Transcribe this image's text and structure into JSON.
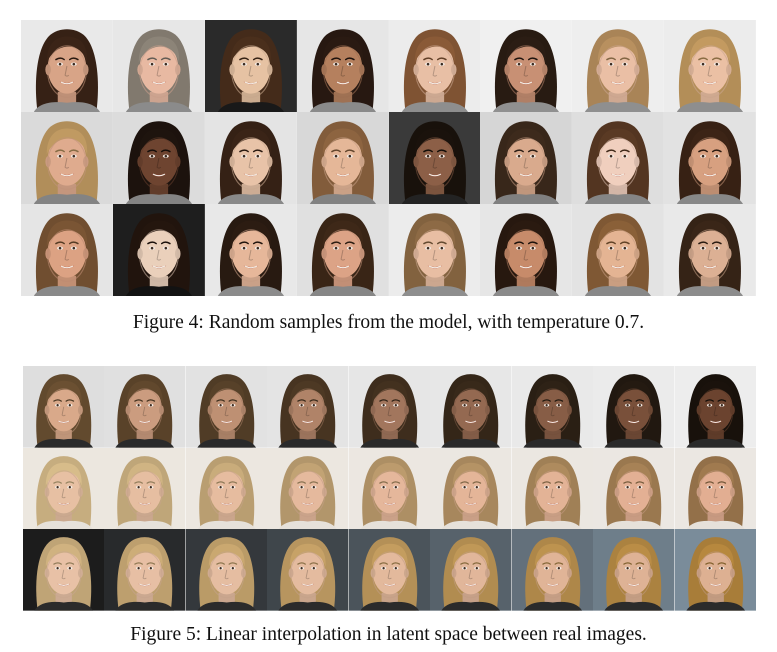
{
  "figure4": {
    "caption": "Figure 4: Random samples from the model, with temperature 0.7.",
    "rows": 3,
    "cols": 8,
    "samples": [
      {
        "bg": "#e9e9e9",
        "skin": "#d8a487",
        "hair": "#3b2417"
      },
      {
        "bg": "#e7e7e7",
        "skin": "#e8b9a2",
        "hair": "#8c8478"
      },
      {
        "bg": "#2a2a2a",
        "skin": "#e6c2a3",
        "hair": "#4a2f1c"
      },
      {
        "bg": "#e6e6e6",
        "skin": "#b5805e",
        "hair": "#2a1a12"
      },
      {
        "bg": "#ececec",
        "skin": "#e8bfa5",
        "hair": "#8a5a37"
      },
      {
        "bg": "#f0f0f0",
        "skin": "#c89074",
        "hair": "#2b1d14"
      },
      {
        "bg": "#eeeeee",
        "skin": "#eabfa5",
        "hair": "#b8905f"
      },
      {
        "bg": "#ececec",
        "skin": "#ebc0a4",
        "hair": "#c39a60"
      },
      {
        "bg": "#dadada",
        "skin": "#dfab8e",
        "hair": "#c09a62"
      },
      {
        "bg": "#dcdcdc",
        "skin": "#6e4430",
        "hair": "#1e140e"
      },
      {
        "bg": "#e4e4e4",
        "skin": "#e8c3a8",
        "hair": "#3a2417"
      },
      {
        "bg": "#d8d8d8",
        "skin": "#e5b798",
        "hair": "#8d6440"
      },
      {
        "bg": "#3a3a3a",
        "skin": "#8c5f47",
        "hair": "#1a120c"
      },
      {
        "bg": "#d6d6d6",
        "skin": "#d9aa8d",
        "hair": "#3d2a1c"
      },
      {
        "bg": "#dedede",
        "skin": "#f0cfbe",
        "hair": "#5a3a24"
      },
      {
        "bg": "#e2e2e2",
        "skin": "#d7a080",
        "hair": "#3c2416"
      },
      {
        "bg": "#e5e5e5",
        "skin": "#dca283",
        "hair": "#7a5534"
      },
      {
        "bg": "#1e1e1e",
        "skin": "#ead0bb",
        "hair": "#24160e"
      },
      {
        "bg": "#e8e8e8",
        "skin": "#e6b79a",
        "hair": "#2c1c12"
      },
      {
        "bg": "#e0e0e0",
        "skin": "#dca386",
        "hair": "#3e2818"
      },
      {
        "bg": "#ececec",
        "skin": "#e8bea3",
        "hair": "#8d6a45"
      },
      {
        "bg": "#e6e6e6",
        "skin": "#c78b6a",
        "hair": "#2a1a10"
      },
      {
        "bg": "#e3e3e3",
        "skin": "#e4b493",
        "hair": "#8a6038"
      },
      {
        "bg": "#e9e9e9",
        "skin": "#dcb094",
        "hair": "#3a2618"
      }
    ]
  },
  "figure5": {
    "caption": "Figure 5: Linear interpolation in latent space between real images.",
    "rows": 3,
    "cols": 9,
    "interpolations": [
      {
        "bg_start": "#dedede",
        "bg_end": "#ededed",
        "skin_start": "#d9a98a",
        "skin_end": "#6b432f",
        "hair_start": "#6b5032",
        "hair_end": "#1a120c",
        "shirt": "#2a2a2a"
      },
      {
        "bg_start": "#ece7df",
        "bg_end": "#ebe7e2",
        "skin_start": "#e7c0a3",
        "skin_end": "#e2ae92",
        "hair_start": "#d7bc8a",
        "hair_end": "#a07a4f",
        "shirt": "#e6e1da"
      },
      {
        "bg_start": "#1c1c1c",
        "bg_end": "#7a8c9a",
        "skin_start": "#e8c1a6",
        "skin_end": "#ddb092",
        "hair_start": "#d0b280",
        "hair_end": "#b7883e",
        "shirt": "#2b2b2b"
      }
    ]
  }
}
